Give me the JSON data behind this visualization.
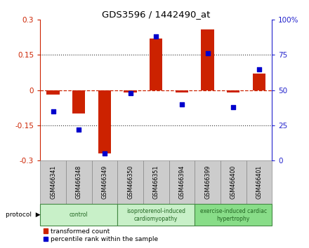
{
  "title": "GDS3596 / 1442490_at",
  "samples": [
    "GSM466341",
    "GSM466348",
    "GSM466349",
    "GSM466350",
    "GSM466351",
    "GSM466394",
    "GSM466399",
    "GSM466400",
    "GSM466401"
  ],
  "transformed_count": [
    -0.02,
    -0.1,
    -0.27,
    -0.01,
    0.22,
    -0.01,
    0.26,
    -0.01,
    0.07
  ],
  "percentile_rank": [
    35,
    22,
    5,
    48,
    88,
    40,
    76,
    38,
    65
  ],
  "left_ylim": [
    -0.3,
    0.3
  ],
  "right_ylim": [
    0,
    100
  ],
  "left_yticks": [
    -0.3,
    -0.15,
    0,
    0.15,
    0.3
  ],
  "right_yticks": [
    0,
    25,
    50,
    75,
    100
  ],
  "left_ytick_labels": [
    "-0.3",
    "-0.15",
    "0",
    "0.15",
    "0.3"
  ],
  "right_ytick_labels": [
    "0",
    "25",
    "50",
    "75",
    "100%"
  ],
  "bar_color": "#cc2200",
  "dot_color": "#0000cc",
  "hline_color": "#cc2200",
  "dotted_line_color": "#333333",
  "protocol_groups": [
    {
      "label": "control",
      "start": 0,
      "end": 2
    },
    {
      "label": "isoproterenol-induced\ncardiomyopathy",
      "start": 3,
      "end": 5
    },
    {
      "label": "exercise-induced cardiac\nhypertrophy",
      "start": 6,
      "end": 8
    }
  ],
  "protocol_bg_light": "#c8f0c8",
  "protocol_bg_dark": "#88dd88",
  "protocol_edge": "#448844",
  "legend_bar_label": "transformed count",
  "legend_dot_label": "percentile rank within the sample",
  "ylabel_left_color": "#cc2200",
  "ylabel_right_color": "#2222cc",
  "sample_box_color": "#cccccc",
  "sample_box_edge": "#888888",
  "bar_width": 0.5
}
